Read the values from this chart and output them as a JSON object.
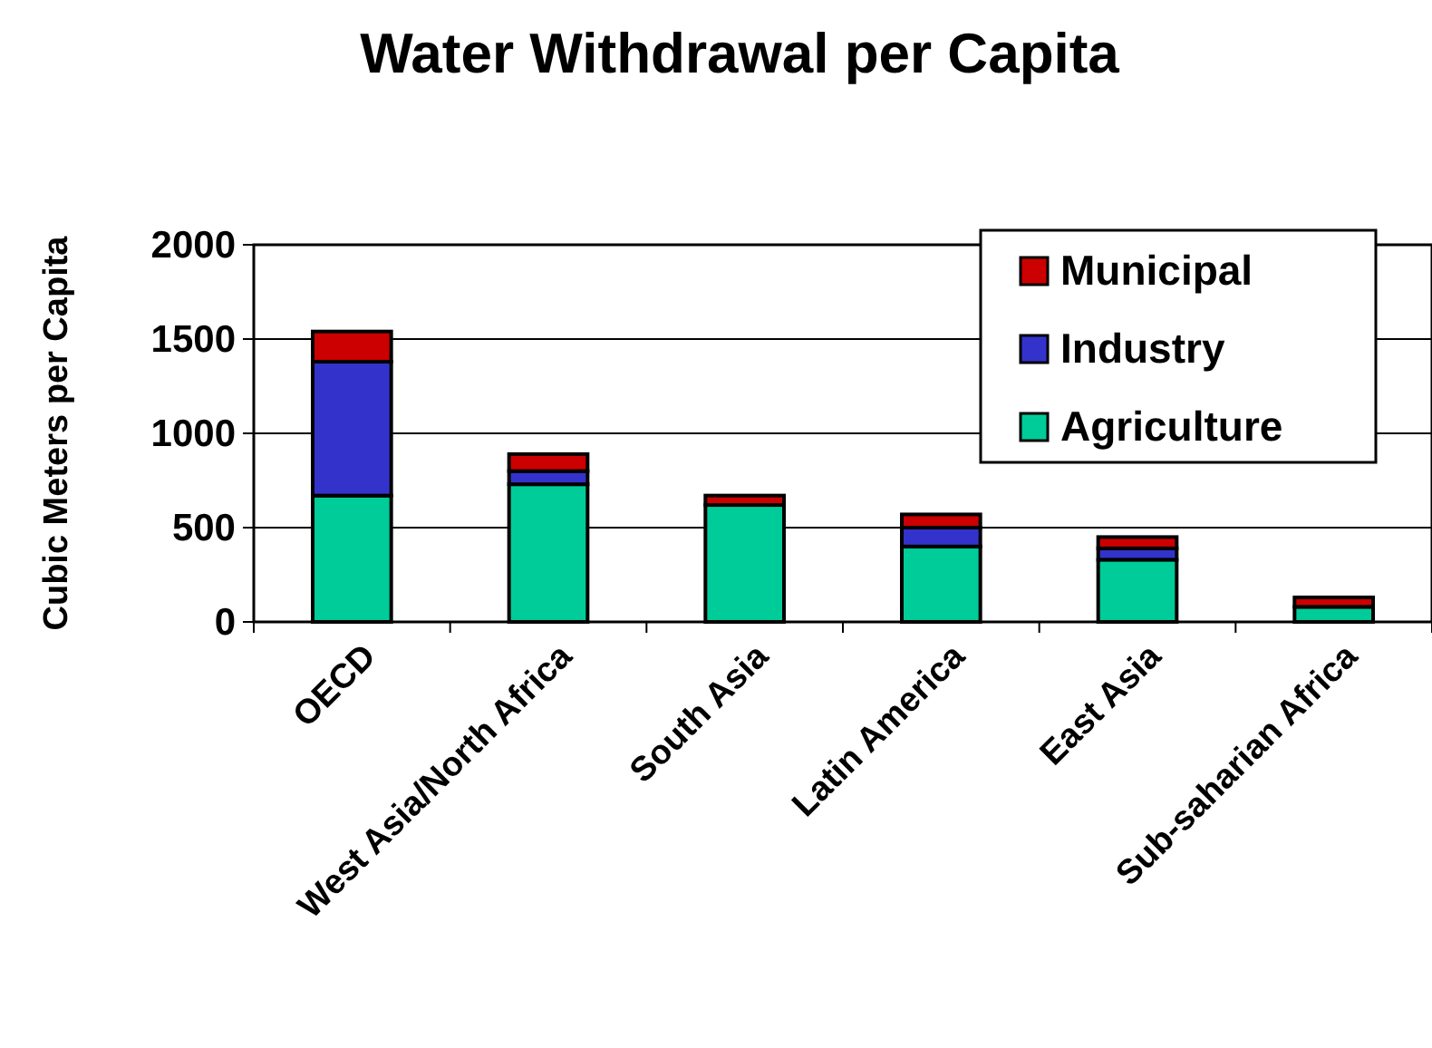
{
  "chart_data": {
    "type": "bar",
    "title": "Water Withdrawal per Capita",
    "ylabel": "Cubic Meters per Capita",
    "categories": [
      "OECD",
      "West Asia/North Africa",
      "South Asia",
      "Latin America",
      "East Asia",
      "Sub-saharian Africa"
    ],
    "stacked": true,
    "series": [
      {
        "name": "Agriculture",
        "color": "#00cc99",
        "values": [
          670,
          730,
          620,
          400,
          330,
          80
        ]
      },
      {
        "name": "Industry",
        "color": "#3333cc",
        "values": [
          710,
          70,
          null,
          100,
          60,
          null
        ]
      },
      {
        "name": "Municipal",
        "color": "#cc0000",
        "values": [
          160,
          90,
          50,
          70,
          60,
          50
        ]
      }
    ],
    "ylim": [
      0,
      2000
    ],
    "yticks": [
      0,
      500,
      1000,
      1500,
      2000
    ],
    "grid": "y",
    "legend": "top right"
  }
}
